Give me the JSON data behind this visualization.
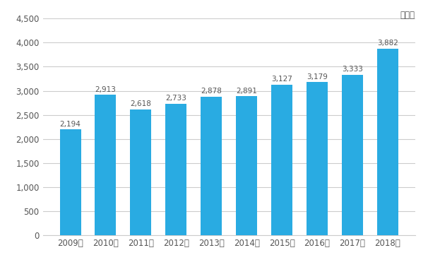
{
  "categories": [
    "2009年",
    "2010年",
    "2011年",
    "2012年",
    "2013年",
    "2014年",
    "2015年",
    "2016年",
    "2017年",
    "2018年"
  ],
  "values": [
    2194,
    2913,
    2618,
    2733,
    2878,
    2891,
    3127,
    3179,
    3333,
    3882
  ],
  "bar_color": "#29ABE2",
  "ylabel_unit": "（人）",
  "ylim": [
    0,
    4500
  ],
  "yticks": [
    0,
    500,
    1000,
    1500,
    2000,
    2500,
    3000,
    3500,
    4000,
    4500
  ],
  "background_color": "#ffffff",
  "grid_color": "#cccccc",
  "label_color": "#555555",
  "tick_color": "#555555"
}
